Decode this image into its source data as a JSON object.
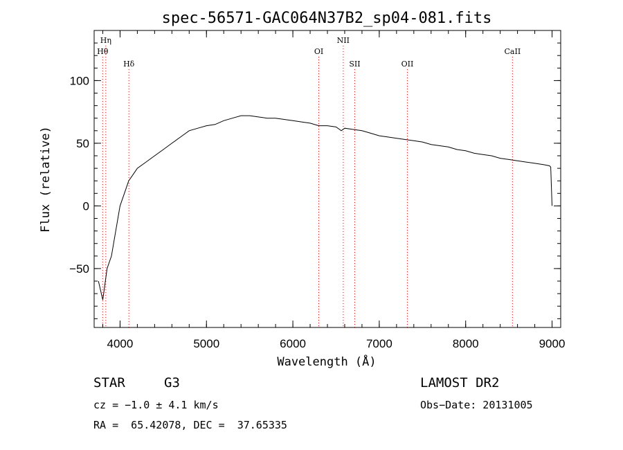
{
  "chart_data": {
    "type": "line",
    "title": "spec-56571-GAC064N37B2_sp04-081.fits",
    "xlabel": "Wavelength (Å)",
    "ylabel": "Flux (relative)",
    "xlim": [
      3700,
      9100
    ],
    "ylim": [
      -97,
      140
    ],
    "x_ticks": [
      4000,
      5000,
      6000,
      7000,
      8000,
      9000
    ],
    "y_ticks": [
      -50,
      0,
      50,
      100
    ],
    "grid": false,
    "spectral_lines": [
      {
        "label": "Hη",
        "x": 3835,
        "row": 1
      },
      {
        "label": "Hθ",
        "x": 3798,
        "row": 2
      },
      {
        "label": "Hδ",
        "x": 4102,
        "row": 3
      },
      {
        "label": "OI",
        "x": 6300,
        "row": 2
      },
      {
        "label": "NII",
        "x": 6583,
        "row": 1
      },
      {
        "label": "SII",
        "x": 6716,
        "row": 3
      },
      {
        "label": "OII",
        "x": 7325,
        "row": 3
      },
      {
        "label": "CaII",
        "x": 8542,
        "row": 2
      }
    ],
    "line_marker_color": "#cc0000",
    "series": [
      {
        "color": "#000000",
        "x": [
          3750,
          3800,
          3850,
          3900,
          3950,
          4000,
          4050,
          4100,
          4150,
          4200,
          4300,
          4400,
          4500,
          4600,
          4700,
          4800,
          4900,
          5000,
          5100,
          5200,
          5300,
          5400,
          5500,
          5600,
          5700,
          5800,
          5900,
          6000,
          6100,
          6200,
          6300,
          6400,
          6500,
          6560,
          6600,
          6700,
          6800,
          6900,
          7000,
          7100,
          7200,
          7300,
          7400,
          7500,
          7600,
          7700,
          7800,
          7900,
          8000,
          8100,
          8200,
          8300,
          8400,
          8500,
          8600,
          8700,
          8800,
          8900,
          8970,
          8985,
          9000
        ],
        "y": [
          -60,
          -75,
          -50,
          -40,
          -20,
          0,
          10,
          20,
          25,
          30,
          35,
          40,
          45,
          50,
          55,
          60,
          62,
          64,
          65,
          68,
          70,
          72,
          72,
          71,
          70,
          70,
          69,
          68,
          67,
          66,
          64,
          64,
          63,
          60,
          62,
          61,
          60,
          58,
          56,
          55,
          54,
          53,
          52,
          51,
          49,
          48,
          47,
          45,
          44,
          42,
          41,
          40,
          38,
          37,
          36,
          35,
          34,
          33,
          32,
          31,
          0
        ]
      }
    ]
  },
  "footer": {
    "object_class": "STAR",
    "subclass": "G3",
    "survey": "LAMOST DR2",
    "redshift": "cz = −1.0 ± 4.1 km/s",
    "obs_date": "Obs−Date: 20131005",
    "coords": "RA =  65.42078, DEC =  37.65335"
  }
}
